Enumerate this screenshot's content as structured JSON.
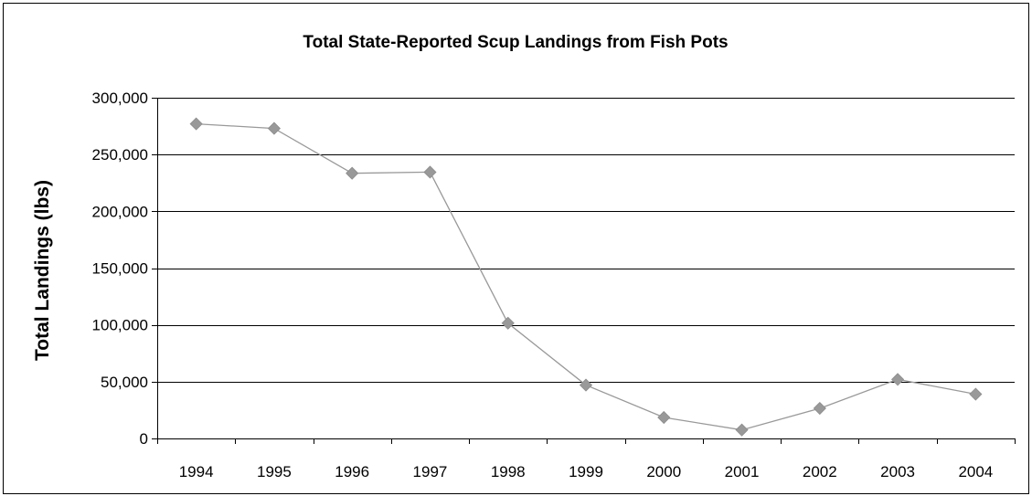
{
  "chart_data": {
    "type": "line",
    "title": "Total State-Reported Scup Landings from Fish Pots",
    "xlabel": "",
    "ylabel": "Total Landings (lbs)",
    "categories": [
      "1994",
      "1995",
      "1996",
      "1997",
      "1998",
      "1999",
      "2000",
      "2001",
      "2002",
      "2003",
      "2004"
    ],
    "series": [
      {
        "values": [
          277000,
          273000,
          233500,
          234500,
          101500,
          47000,
          18500,
          7500,
          26500,
          52000,
          39000
        ]
      }
    ],
    "ylim": [
      0,
      300000
    ],
    "y_ticks": [
      0,
      50000,
      100000,
      150000,
      200000,
      250000,
      300000
    ],
    "y_tick_labels": [
      "0",
      "50,000",
      "100,000",
      "150,000",
      "200,000",
      "250,000",
      "300,000"
    ],
    "grid": true,
    "legend": "none",
    "colors": {
      "line": "#999999",
      "marker": "#999999",
      "grid": "#000000",
      "frame": "#000000"
    },
    "marker": "diamond"
  }
}
